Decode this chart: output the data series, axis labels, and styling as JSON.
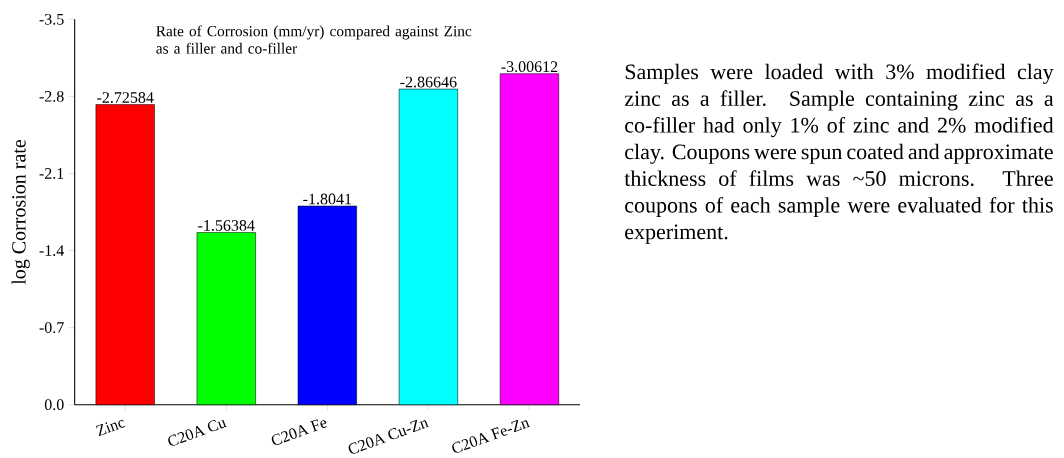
{
  "chart_data": {
    "type": "bar",
    "title": "Rate of Corrosion (mm/yr) compared against Zinc as a filler and co-filler",
    "ylabel": "log Corrosion rate",
    "categories": [
      "Zinc",
      "C20A Cu",
      "C20A Fe",
      "C20A Cu-Zn",
      "C20A Fe-Zn"
    ],
    "values": [
      -2.72584,
      -1.56384,
      -1.8041,
      -2.86646,
      -3.00612
    ],
    "colors": [
      "#ff0000",
      "#00ff00",
      "#0000ff",
      "#00ffff",
      "#ff00ff"
    ],
    "ylim": [
      0,
      -3.5
    ],
    "yticks": [
      {
        "value": 0,
        "label": "0.0"
      },
      -0.7,
      -1.4,
      -2.1,
      -2.8,
      -3.5
    ],
    "data_labels": true,
    "annotations": [
      "Samples were loaded with 3% modified clay zinc as a filler. Sample containing zinc as a co-filler had only 1% of zinc and 2% modified clay. Coupons were spun coated and approximate thickness of films was ~50 microns. Three coupons of each sample were evaluated for this experiment."
    ]
  }
}
